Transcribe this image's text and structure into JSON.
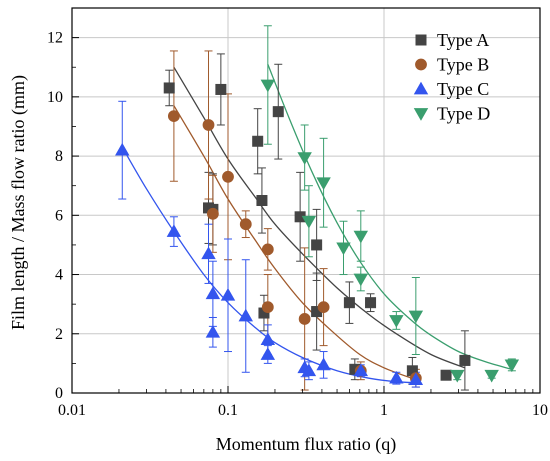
{
  "chart_data": {
    "type": "scatter",
    "xlabel": "Momentum flux ratio (q)",
    "ylabel": "Film length / Mass flow ratio (mm)",
    "xscale": "log",
    "xlim": [
      0.01,
      10
    ],
    "ylim": [
      0,
      13
    ],
    "xticks": [
      0.01,
      0.1,
      1,
      10
    ],
    "xtick_labels": [
      "0.01",
      "0.1",
      "1",
      "10"
    ],
    "yticks": [
      0,
      2,
      4,
      6,
      8,
      10,
      12
    ],
    "ytick_labels": [
      "0",
      "2",
      "4",
      "6",
      "8",
      "10",
      "12"
    ],
    "grid": true,
    "legend_position": "top-right",
    "series": [
      {
        "name": "Type A",
        "marker": "square",
        "color": "#444444",
        "points": [
          {
            "x": 0.042,
            "y": 10.3,
            "err": 0.6
          },
          {
            "x": 0.075,
            "y": 6.25,
            "err": 1.2
          },
          {
            "x": 0.08,
            "y": 6.2,
            "err": 1.2
          },
          {
            "x": 0.09,
            "y": 10.25,
            "err": 1.2
          },
          {
            "x": 0.155,
            "y": 8.5,
            "err": 1.1
          },
          {
            "x": 0.165,
            "y": 6.5,
            "err": 1.1
          },
          {
            "x": 0.17,
            "y": 2.7,
            "err": 0.6
          },
          {
            "x": 0.21,
            "y": 9.5,
            "err": 1.6
          },
          {
            "x": 0.29,
            "y": 5.95,
            "err": 1.5
          },
          {
            "x": 0.37,
            "y": 5.0,
            "err": 1.2
          },
          {
            "x": 0.37,
            "y": 2.75,
            "err": 1.3
          },
          {
            "x": 0.6,
            "y": 3.05,
            "err": 0.7
          },
          {
            "x": 0.65,
            "y": 0.8,
            "err": 0.35
          },
          {
            "x": 0.82,
            "y": 3.05,
            "err": 0.3
          },
          {
            "x": 1.52,
            "y": 0.75,
            "err": 0.45
          },
          {
            "x": 2.5,
            "y": 0.6,
            "err": 0.1
          },
          {
            "x": 3.3,
            "y": 1.1,
            "err": 1.0
          }
        ]
      },
      {
        "name": "Type B",
        "marker": "circle",
        "color": "#a05a2c",
        "points": [
          {
            "x": 0.045,
            "y": 9.35,
            "err": 2.2
          },
          {
            "x": 0.075,
            "y": 9.05,
            "err": 2.5
          },
          {
            "x": 0.08,
            "y": 6.05,
            "err": 1.3
          },
          {
            "x": 0.1,
            "y": 7.3,
            "err": 2.8
          },
          {
            "x": 0.13,
            "y": 5.7,
            "err": 0.45
          },
          {
            "x": 0.18,
            "y": 4.85,
            "err": 0.7
          },
          {
            "x": 0.18,
            "y": 2.9,
            "err": 1.1
          },
          {
            "x": 0.31,
            "y": 2.5,
            "err": 2.4
          },
          {
            "x": 0.41,
            "y": 2.9,
            "err": 1.3
          },
          {
            "x": 0.71,
            "y": 0.75,
            "err": 0.3
          },
          {
            "x": 1.6,
            "y": 0.5,
            "err": 0.3
          }
        ]
      },
      {
        "name": "Type C",
        "marker": "triangle-up",
        "color": "#3355ee",
        "points": [
          {
            "x": 0.021,
            "y": 8.2,
            "err": 1.65
          },
          {
            "x": 0.045,
            "y": 5.45,
            "err": 0.5
          },
          {
            "x": 0.075,
            "y": 4.7,
            "err": 1.0
          },
          {
            "x": 0.08,
            "y": 3.35,
            "err": 1.1
          },
          {
            "x": 0.08,
            "y": 2.05,
            "err": 0.5
          },
          {
            "x": 0.1,
            "y": 3.3,
            "err": 1.9
          },
          {
            "x": 0.13,
            "y": 2.6,
            "err": 1.9
          },
          {
            "x": 0.18,
            "y": 1.8,
            "err": 0.5
          },
          {
            "x": 0.18,
            "y": 1.3,
            "err": 0.3
          },
          {
            "x": 0.31,
            "y": 0.85,
            "err": 0.3
          },
          {
            "x": 0.33,
            "y": 0.75,
            "err": 0.3
          },
          {
            "x": 0.41,
            "y": 0.95,
            "err": 0.45
          },
          {
            "x": 0.71,
            "y": 0.75,
            "err": 0.2
          },
          {
            "x": 1.2,
            "y": 0.5,
            "err": 0.2
          },
          {
            "x": 1.6,
            "y": 0.45,
            "err": 0.25
          }
        ]
      },
      {
        "name": "Type D",
        "marker": "triangle-down",
        "color": "#3a9e6e",
        "points": [
          {
            "x": 0.18,
            "y": 10.4,
            "err": 2.0
          },
          {
            "x": 0.31,
            "y": 7.95,
            "err": 1.1
          },
          {
            "x": 0.33,
            "y": 5.8,
            "err": 1.2
          },
          {
            "x": 0.41,
            "y": 7.1,
            "err": 1.5
          },
          {
            "x": 0.55,
            "y": 4.9,
            "err": 0.9
          },
          {
            "x": 0.71,
            "y": 5.3,
            "err": 0.85
          },
          {
            "x": 0.71,
            "y": 3.85,
            "err": 0.4
          },
          {
            "x": 1.2,
            "y": 2.45,
            "err": 0.3
          },
          {
            "x": 1.6,
            "y": 2.6,
            "err": 1.3
          },
          {
            "x": 2.95,
            "y": 0.6,
            "err": 0.15
          },
          {
            "x": 4.9,
            "y": 0.6,
            "err": 0.1
          },
          {
            "x": 6.6,
            "y": 0.95,
            "err": 0.2
          }
        ]
      }
    ],
    "fit_curves": [
      {
        "series": "Type A",
        "x": [
          0.045,
          0.07,
          0.1,
          0.15,
          0.2,
          0.3,
          0.5,
          0.8,
          1.2,
          2.0,
          3.3
        ],
        "y": [
          11.0,
          9.3,
          7.9,
          6.6,
          5.7,
          4.7,
          3.55,
          2.65,
          2.0,
          1.3,
          0.85
        ]
      },
      {
        "series": "Type B",
        "x": [
          0.045,
          0.07,
          0.1,
          0.15,
          0.2,
          0.3,
          0.45,
          0.7,
          1.0,
          1.6
        ],
        "y": [
          9.7,
          8.0,
          6.55,
          5.15,
          4.2,
          3.05,
          2.15,
          1.3,
          0.85,
          0.45
        ]
      },
      {
        "series": "Type C",
        "x": [
          0.021,
          0.03,
          0.045,
          0.07,
          0.1,
          0.15,
          0.2,
          0.3,
          0.5,
          0.8,
          1.2,
          1.6
        ],
        "y": [
          8.3,
          6.9,
          5.45,
          4.0,
          3.05,
          2.2,
          1.7,
          1.2,
          0.75,
          0.5,
          0.38,
          0.35
        ]
      },
      {
        "series": "Type D",
        "x": [
          0.18,
          0.25,
          0.35,
          0.5,
          0.7,
          1.0,
          1.5,
          2.0,
          3.0,
          4.5,
          6.6
        ],
        "y": [
          11.1,
          9.2,
          7.4,
          5.75,
          4.45,
          3.35,
          2.45,
          1.95,
          1.4,
          1.05,
          0.8
        ]
      }
    ]
  }
}
